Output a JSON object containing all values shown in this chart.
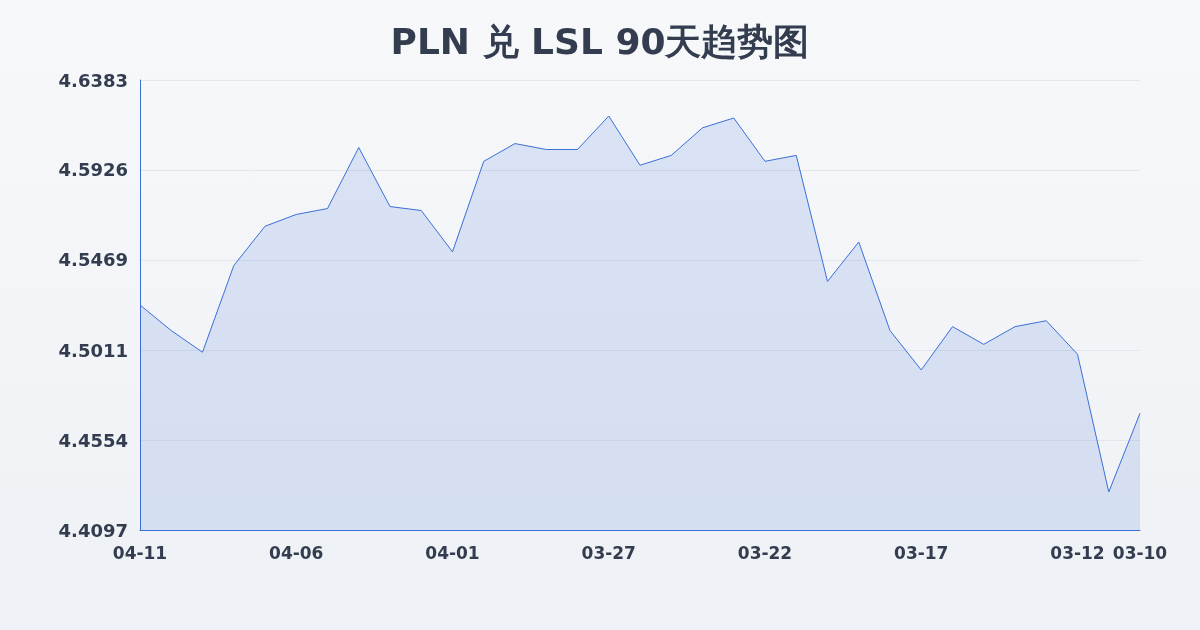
{
  "chart_data": {
    "type": "area",
    "title": "PLN 兑 LSL 90天趋势图",
    "categories": [
      "04-11",
      null,
      null,
      null,
      null,
      "04-06",
      null,
      null,
      null,
      null,
      "04-01",
      null,
      null,
      null,
      null,
      "03-27",
      null,
      null,
      null,
      null,
      "03-22",
      null,
      null,
      null,
      null,
      "03-17",
      null,
      null,
      null,
      null,
      "03-12",
      null,
      "03-10"
    ],
    "series": [
      {
        "color": "#3b6fd8",
        "values": [
          4.524,
          4.511,
          4.5,
          4.544,
          4.564,
          4.57,
          4.573,
          4.604,
          4.574,
          4.572,
          4.551,
          4.597,
          4.606,
          4.603,
          4.603,
          4.62,
          4.595,
          4.6,
          4.614,
          4.619,
          4.597,
          4.6,
          4.536,
          4.556,
          4.511,
          4.491,
          4.513,
          4.504,
          4.513,
          4.516,
          4.499,
          4.429,
          4.469
        ]
      }
    ],
    "ylim": [
      4.4097,
      4.6383
    ],
    "yticks": [
      4.4097,
      4.4554,
      4.5011,
      4.5469,
      4.5926,
      4.6383
    ],
    "grid": "y",
    "marker": "none",
    "line_style": "solid"
  }
}
